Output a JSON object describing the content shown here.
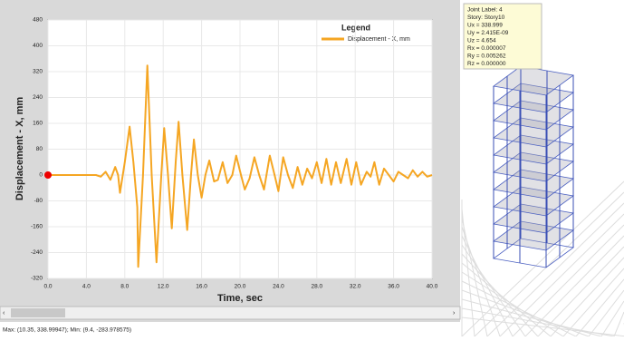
{
  "chart_data": {
    "type": "line",
    "xlabel": "Time,  sec",
    "ylabel": "Displacement - X, mm",
    "legend_title": "Legend",
    "legend": "upper right",
    "x": [
      0,
      1,
      2,
      3,
      4,
      5,
      5.5,
      6.0,
      6.5,
      7.0,
      7.3,
      7.5,
      8.0,
      8.5,
      8.9,
      9.3,
      9.4,
      9.9,
      10.35,
      10.8,
      11.3,
      11.8,
      12.1,
      12.5,
      12.9,
      13.3,
      13.6,
      14.0,
      14.5,
      14.9,
      15.2,
      15.6,
      16.0,
      16.4,
      16.8,
      17.3,
      17.7,
      18.2,
      18.7,
      19.2,
      19.6,
      20.1,
      20.5,
      21.0,
      21.5,
      22.0,
      22.5,
      23.1,
      23.6,
      24.0,
      24.5,
      25.0,
      25.5,
      26.0,
      26.5,
      27.0,
      27.5,
      28.0,
      28.5,
      29.0,
      29.5,
      30.0,
      30.5,
      31.1,
      31.6,
      32.1,
      32.6,
      33.2,
      33.6,
      34.0,
      34.5,
      35.0,
      35.5,
      36.0,
      36.5,
      37.0,
      37.5,
      38.0,
      38.5,
      39.0,
      39.5,
      40
    ],
    "series": [
      {
        "name": "Displacement - X, mm",
        "color": "#f5a623",
        "values": [
          0,
          0,
          0,
          0,
          0,
          0,
          -5,
          10,
          -15,
          25,
          0,
          -55,
          40,
          150,
          40,
          -100,
          -284,
          0,
          339,
          0,
          -270,
          0,
          145,
          0,
          -165,
          40,
          165,
          0,
          -170,
          0,
          110,
          0,
          -70,
          0,
          45,
          -20,
          -15,
          40,
          -25,
          0,
          60,
          0,
          -45,
          -10,
          55,
          0,
          -45,
          60,
          0,
          -50,
          55,
          0,
          -40,
          25,
          -30,
          20,
          -10,
          40,
          -25,
          50,
          -30,
          40,
          -25,
          50,
          -30,
          40,
          -30,
          10,
          -5,
          40,
          -30,
          20,
          0,
          -20,
          10,
          0,
          -10,
          15,
          -5,
          10,
          -5,
          0
        ]
      }
    ],
    "xlim": [
      0,
      40
    ],
    "ylim": [
      -320,
      480
    ],
    "xticks": [
      {
        "value": 0,
        "label": "0.0"
      },
      {
        "value": 4,
        "label": "4.0"
      },
      {
        "value": 8,
        "label": "8.0"
      },
      {
        "value": 12,
        "label": "12.0"
      },
      {
        "value": 16,
        "label": "16.0"
      },
      {
        "value": 20,
        "label": "20.0"
      },
      {
        "value": 24,
        "label": "24.0"
      },
      {
        "value": 28,
        "label": "28.0"
      },
      {
        "value": 32,
        "label": "32.0"
      },
      {
        "value": 36,
        "label": "36.0"
      },
      {
        "value": 40,
        "label": "40.0"
      }
    ],
    "yticks": [
      -320,
      -240,
      -160,
      -80,
      0,
      80,
      160,
      240,
      320,
      400,
      480
    ],
    "grid": true
  },
  "status": "Max: (10.35, 338.99947);  Min: (9.4, -283.978575)",
  "joint_info": {
    "lines": [
      "Joint Label: 4",
      "Story: Story10",
      "Ux =  338.999",
      "Uy =  2.415E-09",
      "Uz =  4.654",
      "Rx =  0.000007",
      "Ry =  0.005262",
      "Rz =  0.000000"
    ]
  }
}
